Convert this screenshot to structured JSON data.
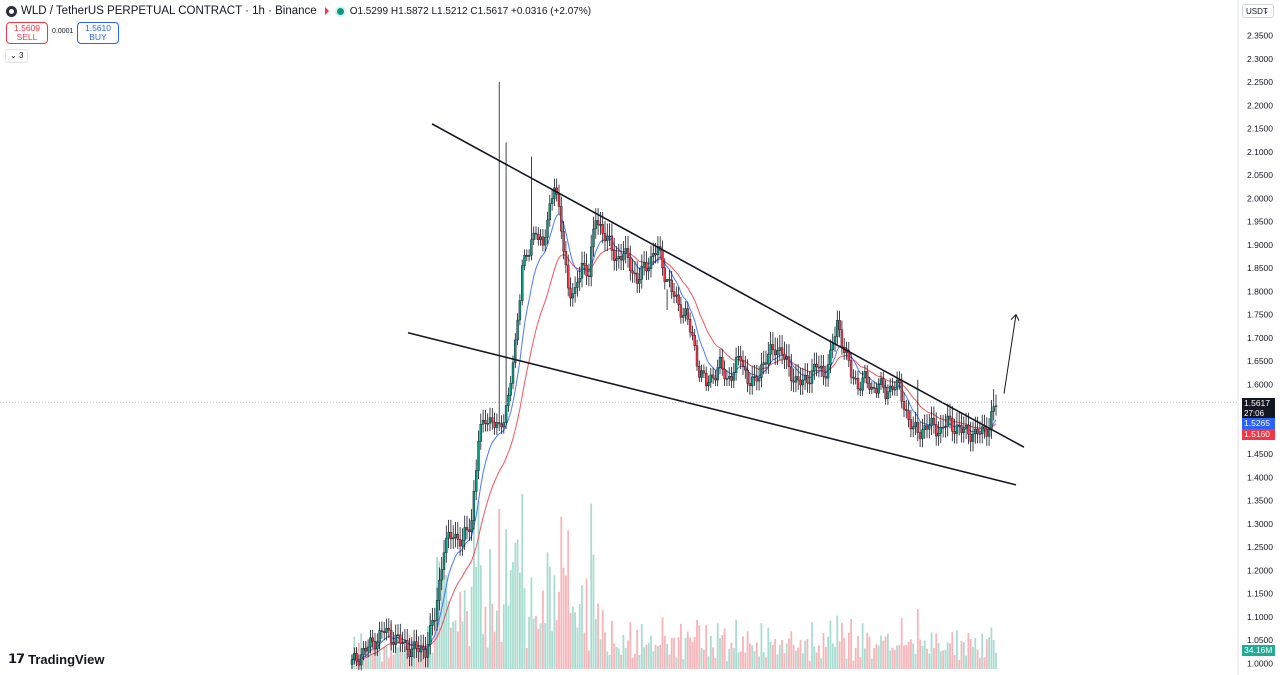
{
  "header": {
    "title": "WLD / TetherUS PERPETUAL CONTRACT · 1h · Binance",
    "ohlc": {
      "o_label": "O",
      "o": "1.5299",
      "h_label": "H",
      "h": "1.5872",
      "l_label": "L",
      "l": "1.5212",
      "c_label": "C",
      "c": "1.5617",
      "change": "+0.0316 (+2.07%)"
    }
  },
  "trade": {
    "sell_price": "1.5609",
    "sell_label": "SELL",
    "spread": "0.0001",
    "buy_price": "1.5610",
    "buy_label": "BUY"
  },
  "indicators_collapse": "3",
  "currency": "USDT",
  "watermark": "TradingView",
  "tags": {
    "last_price": "1.5617",
    "countdown": "27:06",
    "ema_fast": "1.5265",
    "ema_slow": "1.5160",
    "volume": "34.16M"
  },
  "colors": {
    "up": "#089981",
    "down": "#f23645",
    "ema_fast": "#2962ff",
    "ema_slow": "#f23645",
    "vol_up": "#a8dcd1",
    "vol_down": "#f7b5b9"
  },
  "chart_data": {
    "type": "candlestick",
    "symbol": "WLD / TetherUS PERPETUAL CONTRACT",
    "interval": "1h",
    "y_axis_ticks": [
      "2.3500",
      "2.3000",
      "2.2500",
      "2.2000",
      "2.1500",
      "2.1000",
      "2.0500",
      "2.0000",
      "1.9500",
      "1.9000",
      "1.8500",
      "1.8000",
      "1.7500",
      "1.7000",
      "1.6500",
      "1.6000",
      "1.5500",
      "1.5000",
      "1.4500",
      "1.4000",
      "1.3500",
      "1.3000",
      "1.2500",
      "1.2000",
      "1.1500",
      "1.1000",
      "1.0500",
      "1.0000"
    ],
    "ylim": [
      1.0,
      2.35
    ],
    "close_path": [
      [
        0,
        1.0
      ],
      [
        8,
        1.04
      ],
      [
        14,
        1.07
      ],
      [
        20,
        1.05
      ],
      [
        26,
        1.03
      ],
      [
        32,
        1.03
      ],
      [
        36,
        1.1
      ],
      [
        40,
        1.25
      ],
      [
        44,
        1.28
      ],
      [
        48,
        1.26
      ],
      [
        52,
        1.31
      ],
      [
        55,
        1.48
      ],
      [
        58,
        1.53
      ],
      [
        61,
        1.52
      ],
      [
        64,
        1.5
      ],
      [
        68,
        1.57
      ],
      [
        71,
        1.68
      ],
      [
        74,
        1.86
      ],
      [
        77,
        1.88
      ],
      [
        80,
        1.94
      ],
      [
        83,
        1.89
      ],
      [
        86,
        1.98
      ],
      [
        88,
        2.04
      ],
      [
        91,
        1.93
      ],
      [
        94,
        1.81
      ],
      [
        97,
        1.79
      ],
      [
        100,
        1.86
      ],
      [
        103,
        1.84
      ],
      [
        106,
        1.96
      ],
      [
        109,
        1.93
      ],
      [
        112,
        1.9
      ],
      [
        115,
        1.87
      ],
      [
        118,
        1.88
      ],
      [
        121,
        1.86
      ],
      [
        124,
        1.82
      ],
      [
        127,
        1.85
      ],
      [
        130,
        1.87
      ],
      [
        133,
        1.89
      ],
      [
        136,
        1.84
      ],
      [
        139,
        1.8
      ],
      [
        142,
        1.77
      ],
      [
        145,
        1.75
      ],
      [
        148,
        1.7
      ],
      [
        151,
        1.63
      ],
      [
        154,
        1.6
      ],
      [
        157,
        1.62
      ],
      [
        160,
        1.64
      ],
      [
        163,
        1.61
      ],
      [
        166,
        1.63
      ],
      [
        169,
        1.66
      ],
      [
        172,
        1.61
      ],
      [
        175,
        1.6
      ],
      [
        178,
        1.64
      ],
      [
        181,
        1.66
      ],
      [
        184,
        1.68
      ],
      [
        187,
        1.67
      ],
      [
        190,
        1.63
      ],
      [
        193,
        1.61
      ],
      [
        196,
        1.6
      ],
      [
        199,
        1.62
      ],
      [
        202,
        1.64
      ],
      [
        205,
        1.62
      ],
      [
        208,
        1.66
      ],
      [
        211,
        1.73
      ],
      [
        214,
        1.68
      ],
      [
        217,
        1.62
      ],
      [
        220,
        1.6
      ],
      [
        223,
        1.61
      ],
      [
        226,
        1.59
      ],
      [
        229,
        1.6
      ],
      [
        232,
        1.58
      ],
      [
        235,
        1.6
      ],
      [
        238,
        1.59
      ],
      [
        241,
        1.54
      ],
      [
        244,
        1.5
      ],
      [
        247,
        1.5
      ],
      [
        250,
        1.51
      ],
      [
        253,
        1.51
      ],
      [
        256,
        1.5
      ],
      [
        259,
        1.52
      ],
      [
        262,
        1.51
      ],
      [
        265,
        1.5
      ],
      [
        268,
        1.5
      ],
      [
        271,
        1.49
      ],
      [
        274,
        1.5
      ],
      [
        277,
        1.51
      ],
      [
        280,
        1.56
      ]
    ],
    "trendlines": [
      {
        "name": "upper",
        "from": [
          "1.77",
          1.76
        ],
        "to": [
          "1.45",
          1.465
        ]
      },
      {
        "name": "lower",
        "from": [
          "1.71",
          1.72
        ],
        "to": [
          "1.38",
          1.383
        ]
      }
    ],
    "projection_arrow": {
      "from": 1.58,
      "to": 1.75
    }
  }
}
